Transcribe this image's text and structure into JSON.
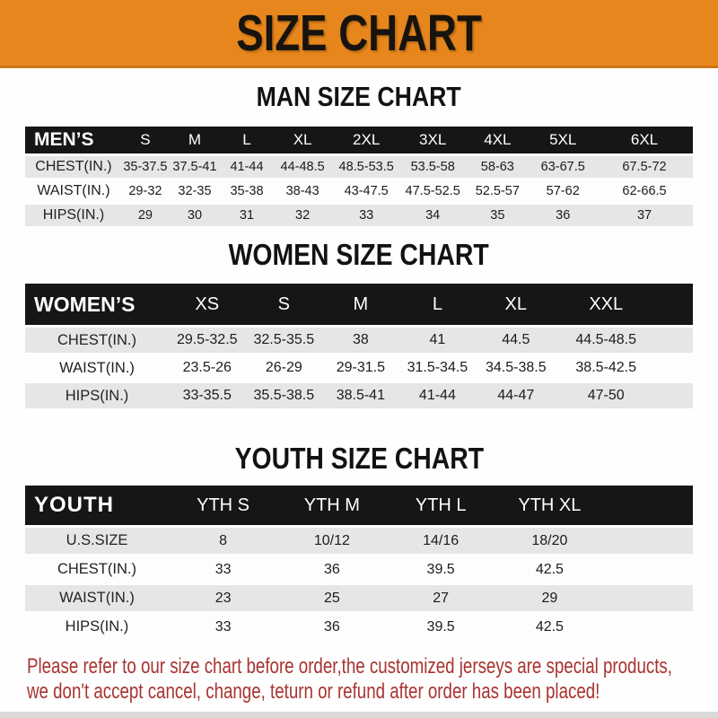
{
  "banner": {
    "title": "SIZE CHART"
  },
  "chart_data": [
    {
      "type": "table",
      "title": "MAN SIZE CHART",
      "columns": [
        "MEN’S",
        "S",
        "M",
        "L",
        "XL",
        "2XL",
        "3XL",
        "4XL",
        "5XL",
        "6XL"
      ],
      "rows": [
        [
          "CHEST(IN.)",
          "35-37.5",
          "37.5-41",
          "41-44",
          "44-48.5",
          "48.5-53.5",
          "53.5-58",
          "58-63",
          "63-67.5",
          "67.5-72"
        ],
        [
          "WAIST(IN.)",
          "29-32",
          "32-35",
          "35-38",
          "38-43",
          "43-47.5",
          "47.5-52.5",
          "52.5-57",
          "57-62",
          "62-66.5"
        ],
        [
          "HIPS(IN.)",
          "29",
          "30",
          "31",
          "32",
          "33",
          "34",
          "35",
          "36",
          "37"
        ]
      ]
    },
    {
      "type": "table",
      "title": "WOMEN SIZE CHART",
      "columns": [
        "WOMEN’S",
        "XS",
        "S",
        "M",
        "L",
        "XL",
        "XXL"
      ],
      "rows": [
        [
          "CHEST(IN.)",
          "29.5-32.5",
          "32.5-35.5",
          "38",
          "41",
          "44.5",
          "44.5-48.5"
        ],
        [
          "WAIST(IN.)",
          "23.5-26",
          "26-29",
          "29-31.5",
          "31.5-34.5",
          "34.5-38.5",
          "38.5-42.5"
        ],
        [
          "HIPS(IN.)",
          "33-35.5",
          "35.5-38.5",
          "38.5-41",
          "41-44",
          "44-47",
          "47-50"
        ]
      ]
    },
    {
      "type": "table",
      "title": "YOUTH SIZE CHART",
      "columns": [
        "YOUTH",
        "YTH S",
        "YTH M",
        "YTH L",
        "YTH XL"
      ],
      "rows": [
        [
          "U.S.SIZE",
          "8",
          "10/12",
          "14/16",
          "18/20"
        ],
        [
          "CHEST(IN.)",
          "33",
          "36",
          "39.5",
          "42.5"
        ],
        [
          "WAIST(IN.)",
          "23",
          "25",
          "27",
          "29"
        ],
        [
          "HIPS(IN.)",
          "33",
          "36",
          "39.5",
          "42.5"
        ]
      ]
    }
  ],
  "footer": {
    "line1": "Please refer to our size chart before order,the customized jerseys are special products,",
    "line2": "we don't accept cancel, change, teturn or refund after order has been placed!"
  },
  "colors": {
    "banner_orange": "#e6861c",
    "banner_border": "#cd7512",
    "header_black": "#161616",
    "row_gray": "#e6e6e6",
    "footer_red": "#a83430"
  }
}
